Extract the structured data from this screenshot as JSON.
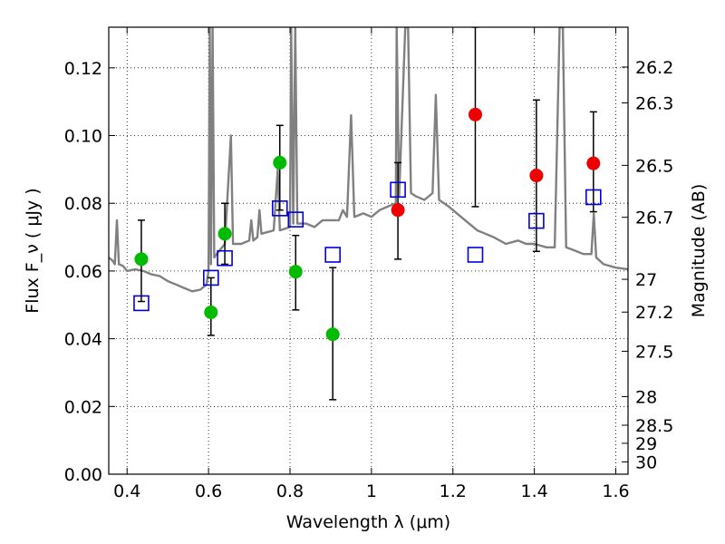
{
  "chart_data": {
    "type": "scatter",
    "xlabel": "Wavelength  λ (μm)",
    "ylabel": "Flux  F_ν  ( μJy )",
    "ylabel_right": "Magnitude (AB)",
    "xlim": [
      0.355,
      1.63
    ],
    "ylim": [
      0.0,
      0.132
    ],
    "x_ticks": [
      0.4,
      0.6,
      0.8,
      1.0,
      1.2,
      1.4,
      1.6
    ],
    "x_tick_labels": [
      "0.4",
      "0.6",
      "0.8",
      "1",
      "1.2",
      "1.4",
      "1.6"
    ],
    "y_ticks": [
      0.0,
      0.02,
      0.04,
      0.06,
      0.08,
      0.1,
      0.12
    ],
    "y_tick_labels": [
      "0.00",
      "0.02",
      "0.04",
      "0.06",
      "0.08",
      "0.10",
      "0.12"
    ],
    "right_ticks": [
      {
        "mag": 26.2,
        "label": "26.2"
      },
      {
        "mag": 26.3,
        "label": "26.3"
      },
      {
        "mag": 26.5,
        "label": "26.5"
      },
      {
        "mag": 26.7,
        "label": "26.7"
      },
      {
        "mag": 27.0,
        "label": "27"
      },
      {
        "mag": 27.2,
        "label": "27.2"
      },
      {
        "mag": 27.5,
        "label": "27.5"
      },
      {
        "mag": 28.0,
        "label": "28"
      },
      {
        "mag": 28.5,
        "label": "28.5"
      },
      {
        "mag": 29.0,
        "label": "29"
      },
      {
        "mag": 30.0,
        "label": "30"
      }
    ],
    "grid": true,
    "series": [
      {
        "marker": "circle",
        "color": "#00bb00",
        "points": [
          {
            "x": 0.435,
            "y": 0.0635,
            "err_low": 0.051,
            "err_high": 0.075
          },
          {
            "x": 0.606,
            "y": 0.0478,
            "err_low": 0.041,
            "err_high": 0.058
          },
          {
            "x": 0.64,
            "y": 0.071,
            "err_low": 0.062,
            "err_high": 0.08
          },
          {
            "x": 0.775,
            "y": 0.092,
            "err_low": 0.078,
            "err_high": 0.103
          },
          {
            "x": 0.814,
            "y": 0.0598,
            "err_low": 0.0485,
            "err_high": 0.0705
          },
          {
            "x": 0.905,
            "y": 0.0413,
            "err_low": 0.022,
            "err_high": 0.061
          }
        ]
      },
      {
        "marker": "circle",
        "color": "#ee0000",
        "points": [
          {
            "x": 1.065,
            "y": 0.078,
            "err_low": 0.0635,
            "err_high": 0.092
          },
          {
            "x": 1.255,
            "y": 0.1062,
            "err_low": 0.079,
            "err_high": 0.132
          },
          {
            "x": 1.405,
            "y": 0.0882,
            "err_low": 0.0658,
            "err_high": 0.1105
          },
          {
            "x": 1.545,
            "y": 0.0918,
            "err_low": 0.0775,
            "err_high": 0.107
          }
        ]
      },
      {
        "marker": "square-open",
        "color": "#0000dd",
        "points": [
          {
            "x": 0.435,
            "y": 0.0505
          },
          {
            "x": 0.606,
            "y": 0.058
          },
          {
            "x": 0.64,
            "y": 0.0638
          },
          {
            "x": 0.775,
            "y": 0.0785
          },
          {
            "x": 0.814,
            "y": 0.0752
          },
          {
            "x": 0.905,
            "y": 0.0648
          },
          {
            "x": 1.065,
            "y": 0.084
          },
          {
            "x": 1.255,
            "y": 0.0648
          },
          {
            "x": 1.405,
            "y": 0.0748
          },
          {
            "x": 1.545,
            "y": 0.0818
          }
        ]
      }
    ],
    "model_spectrum": {
      "color": "#808080",
      "points": [
        [
          0.355,
          0.064
        ],
        [
          0.365,
          0.063
        ],
        [
          0.37,
          0.062
        ],
        [
          0.375,
          0.075
        ],
        [
          0.38,
          0.062
        ],
        [
          0.39,
          0.0615
        ],
        [
          0.4,
          0.06
        ],
        [
          0.42,
          0.0605
        ],
        [
          0.44,
          0.06
        ],
        [
          0.46,
          0.059
        ],
        [
          0.48,
          0.0585
        ],
        [
          0.5,
          0.057
        ],
        [
          0.52,
          0.056
        ],
        [
          0.54,
          0.055
        ],
        [
          0.56,
          0.054
        ],
        [
          0.58,
          0.0545
        ],
        [
          0.595,
          0.056
        ],
        [
          0.6,
          0.06
        ],
        [
          0.603,
          0.132
        ],
        [
          0.606,
          0.062
        ],
        [
          0.61,
          0.132
        ],
        [
          0.614,
          0.064
        ],
        [
          0.62,
          0.065
        ],
        [
          0.64,
          0.068
        ],
        [
          0.655,
          0.1
        ],
        [
          0.66,
          0.068
        ],
        [
          0.68,
          0.068
        ],
        [
          0.7,
          0.069
        ],
        [
          0.705,
          0.075
        ],
        [
          0.71,
          0.069
        ],
        [
          0.72,
          0.07
        ],
        [
          0.725,
          0.078
        ],
        [
          0.73,
          0.071
        ],
        [
          0.76,
          0.072
        ],
        [
          0.77,
          0.09
        ],
        [
          0.775,
          0.072
        ],
        [
          0.8,
          0.073
        ],
        [
          0.803,
          0.132
        ],
        [
          0.808,
          0.074
        ],
        [
          0.813,
          0.132
        ],
        [
          0.818,
          0.074
        ],
        [
          0.84,
          0.074
        ],
        [
          0.86,
          0.073
        ],
        [
          0.88,
          0.075
        ],
        [
          0.9,
          0.075
        ],
        [
          0.92,
          0.075
        ],
        [
          0.93,
          0.078
        ],
        [
          0.94,
          0.076
        ],
        [
          0.95,
          0.106
        ],
        [
          0.958,
          0.076
        ],
        [
          0.98,
          0.077
        ],
        [
          1.0,
          0.076
        ],
        [
          1.02,
          0.078
        ],
        [
          1.04,
          0.079
        ],
        [
          1.06,
          0.08
        ],
        [
          1.062,
          0.132
        ],
        [
          1.068,
          0.082
        ],
        [
          1.083,
          0.132
        ],
        [
          1.09,
          0.132
        ],
        [
          1.097,
          0.083
        ],
        [
          1.11,
          0.082
        ],
        [
          1.13,
          0.081
        ],
        [
          1.15,
          0.083
        ],
        [
          1.158,
          0.112
        ],
        [
          1.166,
          0.081
        ],
        [
          1.19,
          0.079
        ],
        [
          1.21,
          0.077
        ],
        [
          1.23,
          0.075
        ],
        [
          1.26,
          0.072
        ],
        [
          1.28,
          0.071
        ],
        [
          1.3,
          0.07
        ],
        [
          1.33,
          0.068
        ],
        [
          1.36,
          0.069
        ],
        [
          1.38,
          0.068
        ],
        [
          1.4,
          0.068
        ],
        [
          1.43,
          0.067
        ],
        [
          1.45,
          0.067
        ],
        [
          1.462,
          0.132
        ],
        [
          1.47,
          0.132
        ],
        [
          1.478,
          0.067
        ],
        [
          1.5,
          0.066
        ],
        [
          1.52,
          0.065
        ],
        [
          1.54,
          0.065
        ],
        [
          1.546,
          0.077
        ],
        [
          1.552,
          0.064
        ],
        [
          1.57,
          0.062
        ],
        [
          1.6,
          0.061
        ],
        [
          1.63,
          0.0605
        ]
      ]
    }
  }
}
